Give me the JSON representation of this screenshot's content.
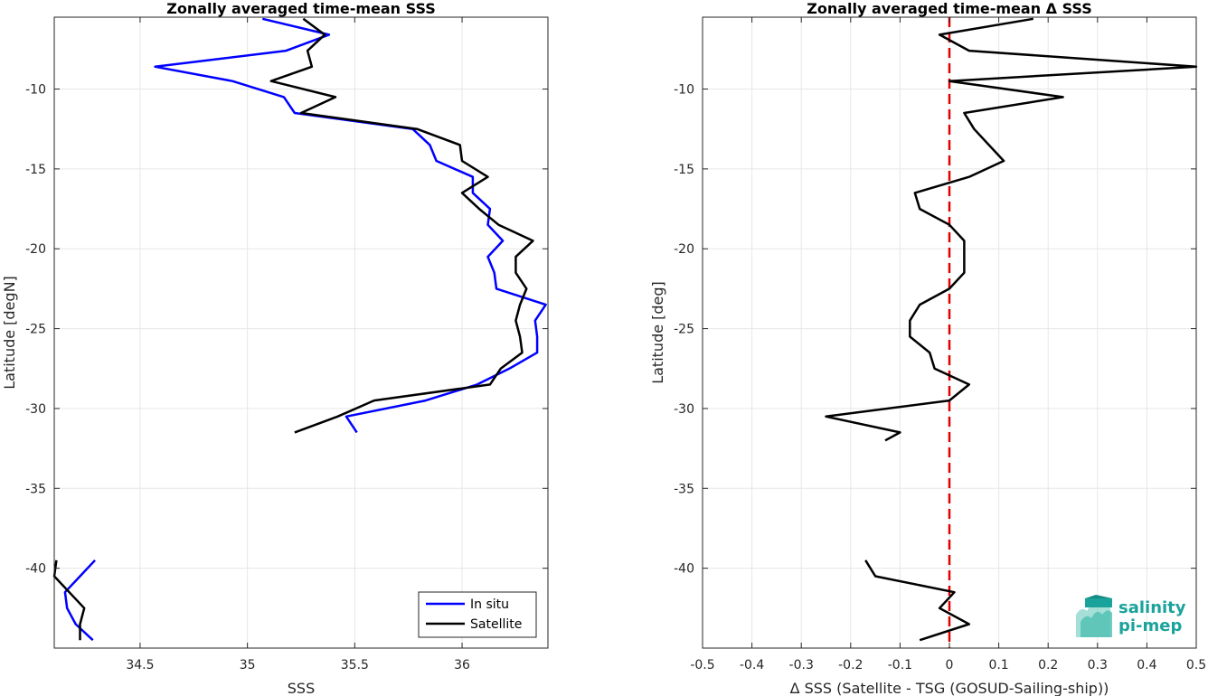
{
  "colors": {
    "in_situ": "#0000ff",
    "satellite": "#000000",
    "zero_line": "#e00000",
    "logo": "#1aa39a"
  },
  "logo": {
    "line1": "salinity",
    "line2": "pi-mep"
  },
  "chart_data": [
    {
      "type": "line",
      "title": "Zonally averaged time-mean SSS",
      "xlabel": "SSS",
      "ylabel": "Latitude [degN]",
      "xlim": [
        34.1,
        36.4
      ],
      "ylim": [
        -45,
        -5.5
      ],
      "xticks": [
        34.5,
        35,
        35.5,
        36
      ],
      "xtick_labels": [
        "34.5",
        "35",
        "35.5",
        "36"
      ],
      "yticks": [
        -40,
        -35,
        -30,
        -25,
        -20,
        -15,
        -10
      ],
      "ytick_labels": [
        "-40",
        "-35",
        "-30",
        "-25",
        "-20",
        "-15",
        "-10"
      ],
      "grid": true,
      "legend": {
        "location": "bottom-right",
        "entries": [
          "In situ",
          "Satellite"
        ]
      },
      "series": [
        {
          "name": "In situ",
          "color": "#0000ff",
          "segments": [
            [
              [
                35.07,
                -5.6
              ],
              [
                35.38,
                -6.6
              ],
              [
                35.18,
                -7.6
              ],
              [
                34.57,
                -8.6
              ],
              [
                34.93,
                -9.5
              ],
              [
                35.17,
                -10.5
              ],
              [
                35.22,
                -11.5
              ],
              [
                35.77,
                -12.5
              ],
              [
                35.85,
                -13.5
              ],
              [
                35.88,
                -14.5
              ],
              [
                36.05,
                -15.5
              ],
              [
                36.05,
                -16.5
              ],
              [
                36.13,
                -17.5
              ],
              [
                36.12,
                -18.5
              ],
              [
                36.19,
                -19.5
              ],
              [
                36.12,
                -20.5
              ],
              [
                36.15,
                -21.5
              ],
              [
                36.16,
                -22.5
              ],
              [
                36.39,
                -23.5
              ],
              [
                36.34,
                -24.5
              ],
              [
                36.35,
                -25.5
              ],
              [
                36.35,
                -26.5
              ],
              [
                36.22,
                -27.5
              ],
              [
                36.07,
                -28.5
              ],
              [
                35.83,
                -29.5
              ],
              [
                35.46,
                -30.5
              ],
              [
                35.51,
                -31.5
              ]
            ],
            [
              [
                34.29,
                -39.5
              ],
              [
                34.22,
                -40.5
              ],
              [
                34.15,
                -41.5
              ],
              [
                34.16,
                -42.5
              ],
              [
                34.2,
                -43.5
              ],
              [
                34.28,
                -44.5
              ]
            ]
          ]
        },
        {
          "name": "Satellite",
          "color": "#000000",
          "segments": [
            [
              [
                35.26,
                -5.6
              ],
              [
                35.36,
                -6.6
              ],
              [
                35.28,
                -7.6
              ],
              [
                35.3,
                -8.6
              ],
              [
                35.11,
                -9.5
              ],
              [
                35.41,
                -10.5
              ],
              [
                35.25,
                -11.5
              ],
              [
                35.79,
                -12.5
              ],
              [
                35.99,
                -13.5
              ],
              [
                36.0,
                -14.5
              ],
              [
                36.12,
                -15.5
              ],
              [
                36.0,
                -16.5
              ],
              [
                36.08,
                -17.5
              ],
              [
                36.17,
                -18.5
              ],
              [
                36.33,
                -19.5
              ],
              [
                36.25,
                -20.5
              ],
              [
                36.25,
                -21.5
              ],
              [
                36.3,
                -22.5
              ],
              [
                36.27,
                -23.5
              ],
              [
                36.25,
                -24.5
              ],
              [
                36.27,
                -25.5
              ],
              [
                36.28,
                -26.5
              ],
              [
                36.18,
                -27.5
              ],
              [
                36.13,
                -28.5
              ],
              [
                35.59,
                -29.5
              ],
              [
                35.42,
                -30.5
              ],
              [
                35.22,
                -31.5
              ]
            ],
            [
              [
                34.11,
                -39.5
              ],
              [
                34.1,
                -40.5
              ],
              [
                34.17,
                -41.5
              ],
              [
                34.24,
                -42.5
              ],
              [
                34.22,
                -43.5
              ],
              [
                34.22,
                -44.5
              ]
            ]
          ]
        }
      ]
    },
    {
      "type": "line",
      "title": "Zonally averaged time-mean Δ SSS",
      "xlabel": "Δ SSS (Satellite - TSG (GOSUD-Sailing-ship))",
      "ylabel": "Latitude [deg]",
      "xlim": [
        -0.5,
        0.5
      ],
      "ylim": [
        -45,
        -5.5
      ],
      "xticks": [
        -0.5,
        -0.4,
        -0.3,
        -0.2,
        -0.1,
        0,
        0.1,
        0.2,
        0.3,
        0.4,
        0.5
      ],
      "xtick_labels": [
        "-0.5",
        "-0.4",
        "-0.3",
        "-0.2",
        "-0.1",
        "0",
        "0.1",
        "0.2",
        "0.3",
        "0.4",
        "0.5"
      ],
      "yticks": [
        -40,
        -35,
        -30,
        -25,
        -20,
        -15,
        -10
      ],
      "ytick_labels": [
        "-40",
        "-35",
        "-30",
        "-25",
        "-20",
        "-15",
        "-10"
      ],
      "grid": true,
      "zero_line": {
        "x": 0,
        "style": "dashed",
        "color": "#e00000"
      },
      "series": [
        {
          "color": "#000000",
          "segments": [
            [
              [
                0.17,
                -5.6
              ],
              [
                -0.02,
                -6.6
              ],
              [
                0.04,
                -7.6
              ],
              [
                0.5,
                -8.6
              ],
              [
                0.0,
                -9.5
              ],
              [
                0.23,
                -10.5
              ],
              [
                0.03,
                -11.5
              ],
              [
                0.05,
                -12.5
              ],
              [
                0.08,
                -13.5
              ],
              [
                0.11,
                -14.5
              ],
              [
                0.04,
                -15.5
              ],
              [
                -0.07,
                -16.5
              ],
              [
                -0.06,
                -17.5
              ],
              [
                0.0,
                -18.5
              ],
              [
                0.03,
                -19.5
              ],
              [
                0.03,
                -20.5
              ],
              [
                0.03,
                -21.5
              ],
              [
                0.0,
                -22.5
              ],
              [
                -0.06,
                -23.5
              ],
              [
                -0.08,
                -24.5
              ],
              [
                -0.08,
                -25.5
              ],
              [
                -0.04,
                -26.5
              ],
              [
                -0.03,
                -27.5
              ],
              [
                0.04,
                -28.5
              ],
              [
                0.0,
                -29.5
              ],
              [
                -0.25,
                -30.5
              ],
              [
                -0.1,
                -31.5
              ],
              [
                -0.13,
                -32.0
              ]
            ],
            [
              [
                -0.17,
                -39.5
              ],
              [
                -0.15,
                -40.5
              ],
              [
                0.01,
                -41.5
              ],
              [
                -0.02,
                -42.5
              ],
              [
                0.04,
                -43.5
              ],
              [
                -0.06,
                -44.5
              ]
            ]
          ]
        }
      ]
    }
  ]
}
